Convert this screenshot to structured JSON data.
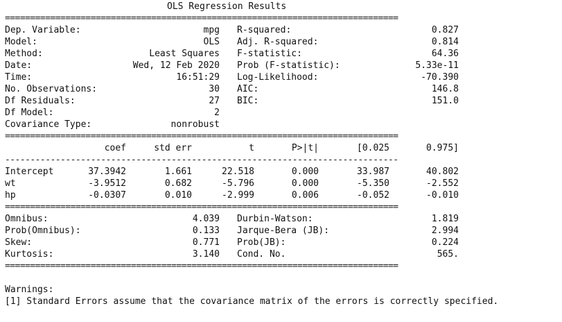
{
  "title": "OLS Regression Results",
  "rule_double": "==============================================================================",
  "rule_single": "------------------------------------------------------------------------------",
  "top_left": [
    {
      "label": "Dep. Variable:",
      "value": "mpg"
    },
    {
      "label": "Model:",
      "value": "OLS"
    },
    {
      "label": "Method:",
      "value": "Least Squares"
    },
    {
      "label": "Date:",
      "value": "Wed, 12 Feb 2020"
    },
    {
      "label": "Time:",
      "value": "16:51:29"
    },
    {
      "label": "No. Observations:",
      "value": "30"
    },
    {
      "label": "Df Residuals:",
      "value": "27"
    },
    {
      "label": "Df Model:",
      "value": "2"
    },
    {
      "label": "Covariance Type:",
      "value": "nonrobust"
    }
  ],
  "top_right": [
    {
      "label": "R-squared:",
      "value": "0.827"
    },
    {
      "label": "Adj. R-squared:",
      "value": "0.814"
    },
    {
      "label": "F-statistic:",
      "value": "64.36"
    },
    {
      "label": "Prob (F-statistic):",
      "value": "5.33e-11"
    },
    {
      "label": "Log-Likelihood:",
      "value": "-70.390"
    },
    {
      "label": "AIC:",
      "value": "146.8"
    },
    {
      "label": "BIC:",
      "value": "151.0"
    }
  ],
  "coef_headers": [
    "coef",
    "std err",
    "t",
    "P>|t|",
    "[0.025",
    "0.975]"
  ],
  "coef_rows": [
    {
      "name": "Intercept",
      "values": [
        "37.3942",
        "1.661",
        "22.518",
        "0.000",
        "33.987",
        "40.802"
      ]
    },
    {
      "name": "wt",
      "values": [
        "-3.9512",
        "0.682",
        "-5.796",
        "0.000",
        "-5.350",
        "-2.552"
      ]
    },
    {
      "name": "hp",
      "values": [
        "-0.0307",
        "0.010",
        "-2.999",
        "0.006",
        "-0.052",
        "-0.010"
      ]
    }
  ],
  "diag_left": [
    {
      "label": "Omnibus:",
      "value": "4.039"
    },
    {
      "label": "Prob(Omnibus):",
      "value": "0.133"
    },
    {
      "label": "Skew:",
      "value": "0.771"
    },
    {
      "label": "Kurtosis:",
      "value": "3.140"
    }
  ],
  "diag_right": [
    {
      "label": "Durbin-Watson:",
      "value": "1.819"
    },
    {
      "label": "Jarque-Bera (JB):",
      "value": "2.994"
    },
    {
      "label": "Prob(JB):",
      "value": "0.224"
    },
    {
      "label": "Cond. No.",
      "value": "565."
    }
  ],
  "warnings": {
    "heading": "Warnings:",
    "items": [
      "[1] Standard Errors assume that the covariance matrix of the errors is correctly specified."
    ]
  }
}
